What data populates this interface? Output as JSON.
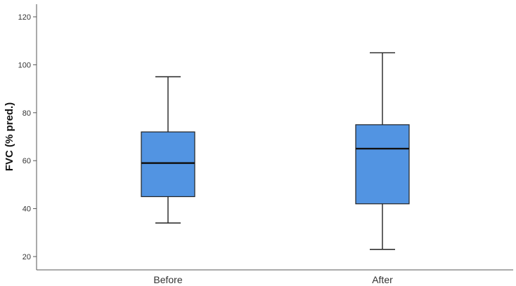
{
  "chart_data": {
    "type": "box",
    "title": "",
    "xlabel": "",
    "ylabel": "FVC (% pred.)",
    "ylim": [
      15,
      125
    ],
    "yticks": [
      20,
      40,
      60,
      80,
      100,
      120
    ],
    "grid": false,
    "legend": "none",
    "box_color": "#5294e2",
    "categories": [
      "Before",
      "After"
    ],
    "boxes": [
      {
        "category": "Before",
        "min": 34,
        "q1": 45,
        "median": 59,
        "q3": 72,
        "max": 95
      },
      {
        "category": "After",
        "min": 23,
        "q1": 42,
        "median": 65,
        "q3": 75,
        "max": 105
      }
    ]
  }
}
